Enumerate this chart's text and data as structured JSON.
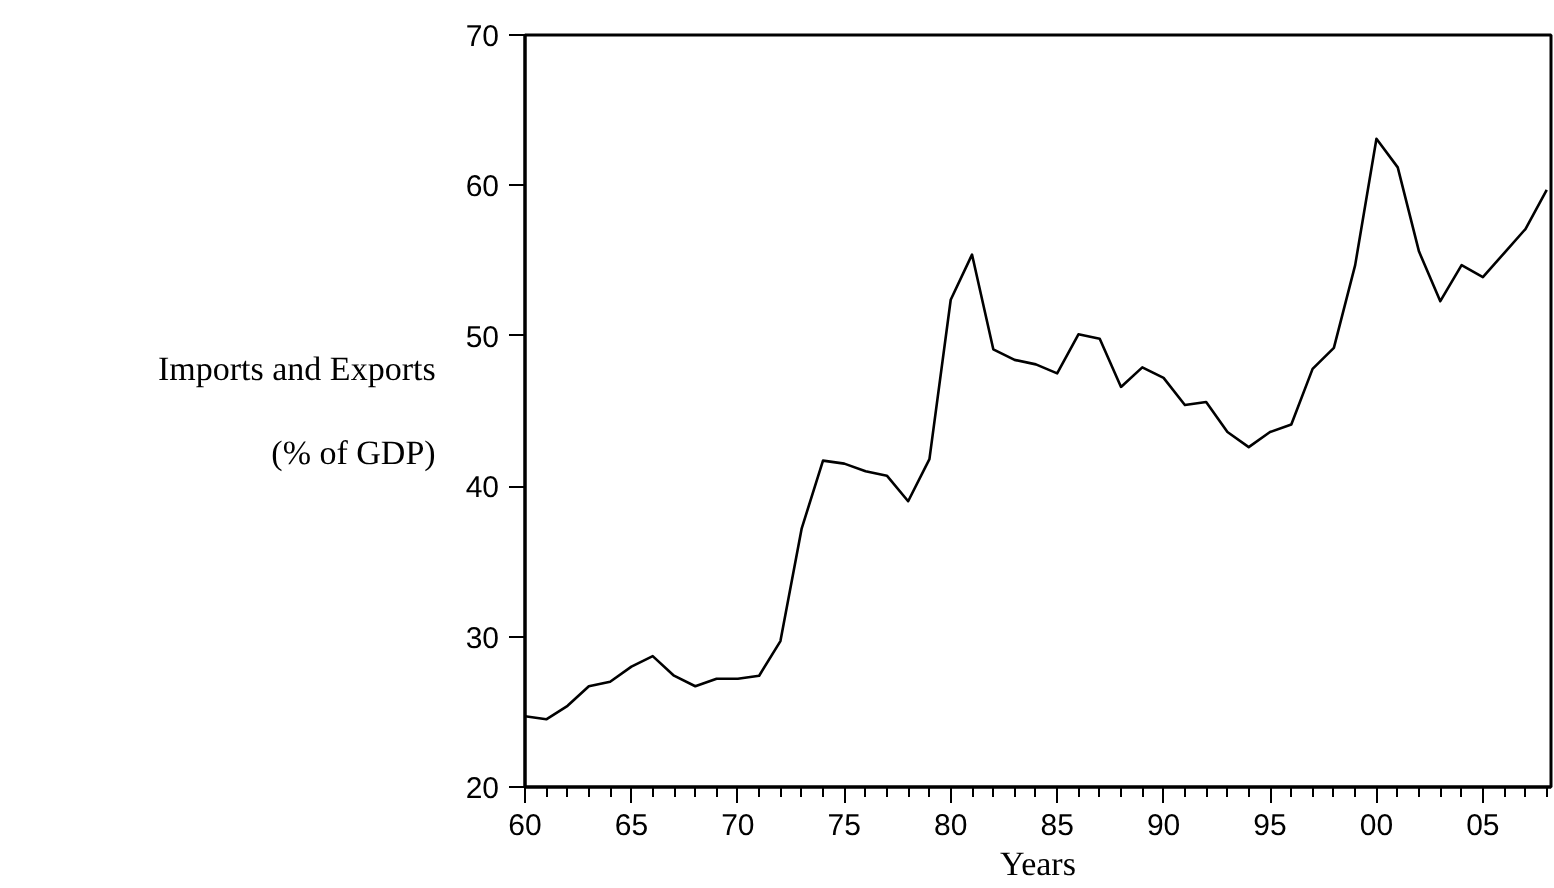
{
  "chart_data": {
    "type": "line",
    "xlabel": "Years",
    "ylabel": "Imports and Exports\n(% of GDP)",
    "x": [
      1960,
      1961,
      1962,
      1963,
      1964,
      1965,
      1966,
      1967,
      1968,
      1969,
      1970,
      1971,
      1972,
      1973,
      1974,
      1975,
      1976,
      1977,
      1978,
      1979,
      1980,
      1981,
      1982,
      1983,
      1984,
      1985,
      1986,
      1987,
      1988,
      1989,
      1990,
      1991,
      1992,
      1993,
      1994,
      1995,
      1996,
      1997,
      1998,
      1999,
      2000,
      2001,
      2002,
      2003,
      2004,
      2005,
      2006,
      2007,
      2008
    ],
    "series": [
      {
        "color": "#000000",
        "values": [
          24.7,
          24.5,
          25.4,
          26.7,
          27.0,
          28.0,
          28.7,
          27.4,
          26.7,
          27.2,
          27.2,
          27.4,
          29.7,
          37.2,
          41.7,
          41.5,
          41.0,
          40.7,
          39.0,
          41.8,
          52.4,
          55.4,
          49.1,
          48.4,
          48.1,
          47.5,
          50.1,
          49.8,
          46.6,
          47.9,
          47.2,
          45.4,
          45.6,
          43.6,
          42.6,
          43.6,
          44.1,
          47.8,
          49.2,
          54.7,
          63.1,
          61.2,
          55.6,
          52.3,
          54.7,
          53.9,
          55.5,
          57.1,
          59.7
        ]
      }
    ],
    "xlim": [
      1960,
      2008.2
    ],
    "ylim": [
      20,
      70
    ],
    "yticks": [
      20,
      30,
      40,
      50,
      60,
      70
    ],
    "xticks": [
      {
        "value": 1960,
        "label": "60"
      },
      {
        "value": 1961,
        "label": null
      },
      {
        "value": 1962,
        "label": null
      },
      {
        "value": 1963,
        "label": null
      },
      {
        "value": 1964,
        "label": null
      },
      {
        "value": 1965,
        "label": "65"
      },
      {
        "value": 1966,
        "label": null
      },
      {
        "value": 1967,
        "label": null
      },
      {
        "value": 1968,
        "label": null
      },
      {
        "value": 1969,
        "label": null
      },
      {
        "value": 1970,
        "label": "70"
      },
      {
        "value": 1971,
        "label": null
      },
      {
        "value": 1972,
        "label": null
      },
      {
        "value": 1973,
        "label": null
      },
      {
        "value": 1974,
        "label": null
      },
      {
        "value": 1975,
        "label": "75"
      },
      {
        "value": 1976,
        "label": null
      },
      {
        "value": 1977,
        "label": null
      },
      {
        "value": 1978,
        "label": null
      },
      {
        "value": 1979,
        "label": null
      },
      {
        "value": 1980,
        "label": "80"
      },
      {
        "value": 1981,
        "label": null
      },
      {
        "value": 1982,
        "label": null
      },
      {
        "value": 1983,
        "label": null
      },
      {
        "value": 1984,
        "label": null
      },
      {
        "value": 1985,
        "label": "85"
      },
      {
        "value": 1986,
        "label": null
      },
      {
        "value": 1987,
        "label": null
      },
      {
        "value": 1988,
        "label": null
      },
      {
        "value": 1989,
        "label": null
      },
      {
        "value": 1990,
        "label": "90"
      },
      {
        "value": 1991,
        "label": null
      },
      {
        "value": 1992,
        "label": null
      },
      {
        "value": 1993,
        "label": null
      },
      {
        "value": 1994,
        "label": null
      },
      {
        "value": 1995,
        "label": "95"
      },
      {
        "value": 1996,
        "label": null
      },
      {
        "value": 1997,
        "label": null
      },
      {
        "value": 1998,
        "label": null
      },
      {
        "value": 1999,
        "label": null
      },
      {
        "value": 2000,
        "label": "00"
      },
      {
        "value": 2001,
        "label": null
      },
      {
        "value": 2002,
        "label": null
      },
      {
        "value": 2003,
        "label": null
      },
      {
        "value": 2004,
        "label": null
      },
      {
        "value": 2005,
        "label": "05"
      },
      {
        "value": 2006,
        "label": null
      },
      {
        "value": 2007,
        "label": null
      },
      {
        "value": 2008,
        "label": null
      }
    ],
    "grid": false,
    "line_style": "solid"
  }
}
